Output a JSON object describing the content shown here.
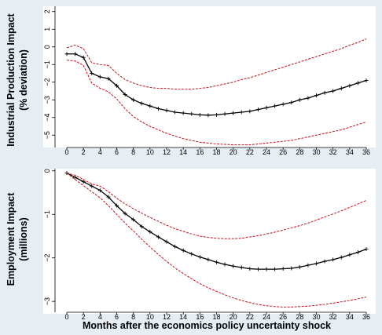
{
  "colors": {
    "outer_bg": "#e6eef4",
    "plot_bg": "#ffffff",
    "point_estimate": "#000000",
    "confidence_band": "#c0141c"
  },
  "xlabel": "Months after the economics policy uncertainty shock",
  "chart_data": [
    {
      "type": "line",
      "ylabel": [
        "Industrial Production Impact",
        "(% deviation)"
      ],
      "xlim": [
        0,
        36
      ],
      "ylim": [
        -5.7,
        2.3
      ],
      "xticks": [
        0,
        2,
        4,
        6,
        8,
        10,
        12,
        14,
        16,
        18,
        20,
        22,
        24,
        26,
        28,
        30,
        32,
        34,
        36
      ],
      "yticks": [
        2,
        1,
        0,
        -1,
        -2,
        -3,
        -4,
        -5
      ],
      "grid": false,
      "x": [
        0,
        1,
        2,
        3,
        4,
        5,
        6,
        7,
        8,
        9,
        10,
        11,
        12,
        13,
        14,
        15,
        16,
        17,
        18,
        19,
        20,
        21,
        22,
        23,
        24,
        25,
        26,
        27,
        28,
        29,
        30,
        31,
        32,
        33,
        34,
        35,
        36
      ],
      "series": [
        {
          "role": "point_estimate",
          "values": [
            -0.4,
            -0.4,
            -0.6,
            -1.5,
            -1.7,
            -1.8,
            -2.2,
            -2.7,
            -3.0,
            -3.2,
            -3.35,
            -3.5,
            -3.6,
            -3.7,
            -3.75,
            -3.8,
            -3.85,
            -3.87,
            -3.85,
            -3.8,
            -3.75,
            -3.7,
            -3.65,
            -3.55,
            -3.45,
            -3.35,
            -3.25,
            -3.15,
            -3.0,
            -2.9,
            -2.75,
            -2.6,
            -2.5,
            -2.35,
            -2.2,
            -2.05,
            -1.9
          ]
        },
        {
          "role": "upper_band",
          "values": [
            -0.05,
            0.1,
            -0.1,
            -0.9,
            -1.0,
            -1.05,
            -1.5,
            -1.85,
            -2.05,
            -2.2,
            -2.3,
            -2.35,
            -2.35,
            -2.4,
            -2.4,
            -2.4,
            -2.35,
            -2.3,
            -2.2,
            -2.1,
            -2.0,
            -1.85,
            -1.75,
            -1.6,
            -1.45,
            -1.3,
            -1.15,
            -1.0,
            -0.85,
            -0.7,
            -0.55,
            -0.4,
            -0.25,
            -0.1,
            0.1,
            0.25,
            0.45
          ]
        },
        {
          "role": "lower_band",
          "values": [
            -0.75,
            -0.8,
            -1.05,
            -2.05,
            -2.35,
            -2.55,
            -2.95,
            -3.5,
            -3.95,
            -4.25,
            -4.5,
            -4.7,
            -4.9,
            -5.05,
            -5.2,
            -5.3,
            -5.4,
            -5.45,
            -5.5,
            -5.52,
            -5.55,
            -5.55,
            -5.55,
            -5.5,
            -5.45,
            -5.4,
            -5.35,
            -5.3,
            -5.2,
            -5.1,
            -5.0,
            -4.9,
            -4.8,
            -4.7,
            -4.55,
            -4.4,
            -4.25
          ]
        }
      ]
    },
    {
      "type": "line",
      "ylabel": [
        "Employment Impact",
        "(millions)"
      ],
      "xlim": [
        0,
        36
      ],
      "ylim": [
        -3.25,
        0.05
      ],
      "xticks": [
        0,
        2,
        4,
        6,
        8,
        10,
        12,
        14,
        16,
        18,
        20,
        22,
        24,
        26,
        28,
        30,
        32,
        34,
        36
      ],
      "yticks": [
        0,
        -1,
        -2,
        -3
      ],
      "grid": false,
      "x": [
        0,
        1,
        2,
        3,
        4,
        5,
        6,
        7,
        8,
        9,
        10,
        11,
        12,
        13,
        14,
        15,
        16,
        17,
        18,
        19,
        20,
        21,
        22,
        23,
        24,
        25,
        26,
        27,
        28,
        29,
        30,
        31,
        32,
        33,
        34,
        35,
        36
      ],
      "series": [
        {
          "role": "point_estimate",
          "values": [
            -0.05,
            -0.15,
            -0.25,
            -0.35,
            -0.45,
            -0.6,
            -0.8,
            -0.98,
            -1.12,
            -1.28,
            -1.4,
            -1.52,
            -1.63,
            -1.74,
            -1.83,
            -1.91,
            -1.98,
            -2.04,
            -2.1,
            -2.15,
            -2.19,
            -2.22,
            -2.25,
            -2.26,
            -2.26,
            -2.26,
            -2.25,
            -2.24,
            -2.21,
            -2.17,
            -2.13,
            -2.08,
            -2.04,
            -1.99,
            -1.93,
            -1.87,
            -1.8
          ]
        },
        {
          "role": "upper_band",
          "values": [
            -0.05,
            -0.1,
            -0.2,
            -0.3,
            -0.35,
            -0.48,
            -0.63,
            -0.76,
            -0.87,
            -0.97,
            -1.07,
            -1.16,
            -1.25,
            -1.33,
            -1.39,
            -1.45,
            -1.5,
            -1.53,
            -1.55,
            -1.56,
            -1.56,
            -1.55,
            -1.52,
            -1.49,
            -1.45,
            -1.41,
            -1.36,
            -1.31,
            -1.26,
            -1.2,
            -1.13,
            -1.06,
            -0.99,
            -0.92,
            -0.84,
            -0.76,
            -0.68
          ]
        },
        {
          "role": "lower_band",
          "values": [
            -0.05,
            -0.2,
            -0.34,
            -0.48,
            -0.62,
            -0.8,
            -1.0,
            -1.2,
            -1.38,
            -1.57,
            -1.75,
            -1.92,
            -2.08,
            -2.23,
            -2.36,
            -2.48,
            -2.59,
            -2.69,
            -2.77,
            -2.85,
            -2.92,
            -2.98,
            -3.03,
            -3.07,
            -3.1,
            -3.12,
            -3.13,
            -3.13,
            -3.12,
            -3.11,
            -3.09,
            -3.07,
            -3.04,
            -3.01,
            -2.98,
            -2.94,
            -2.9
          ]
        }
      ]
    }
  ]
}
